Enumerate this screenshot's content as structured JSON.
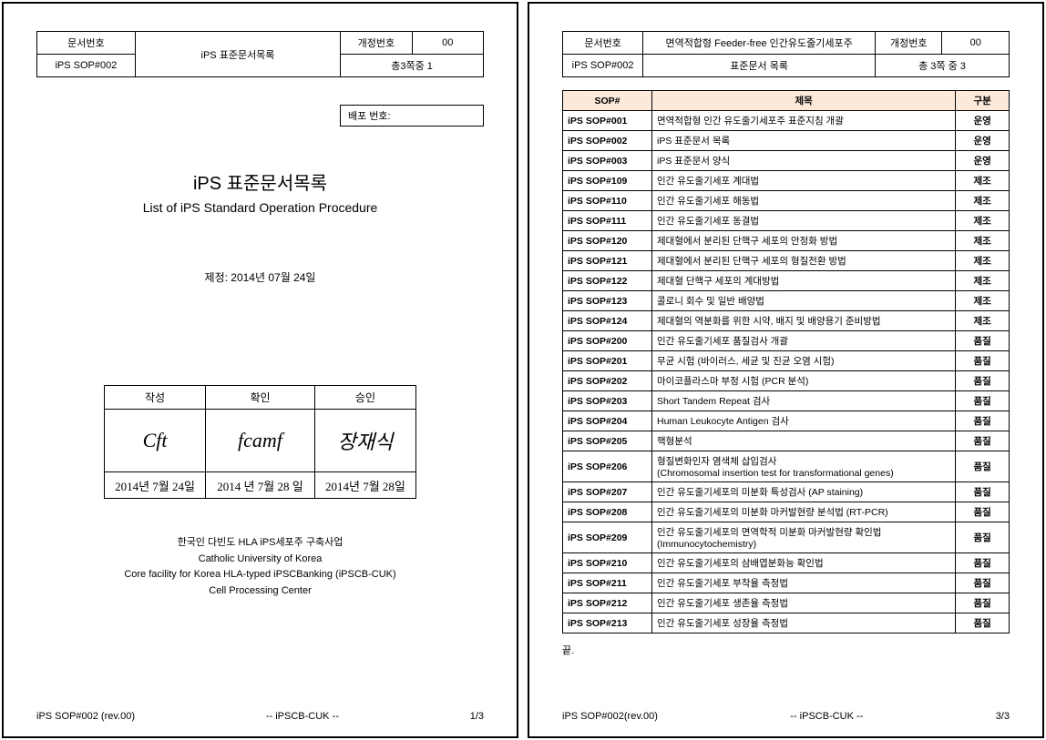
{
  "page1": {
    "header": {
      "docnum_label": "문서번호",
      "docnum": "iPS SOP#002",
      "title": "iPS 표준문서목록",
      "rev_label": "개정번호",
      "rev": "00",
      "pages": "총3쪽중 1"
    },
    "dist_label": "배포 번호:",
    "main_title_kr": "iPS 표준문서목록",
    "main_title_en": "List of iPS Standard Operation Procedure",
    "date_line": "제정: 2014년 07월   24일",
    "sig_headers": {
      "a": "작성",
      "b": "확인",
      "c": "승인"
    },
    "sigs": {
      "a": "Cft",
      "b": "fcamf",
      "c": "장재식"
    },
    "sig_dates": {
      "a": "2014년 7월 24일",
      "b": "2014 년 7월 28 일",
      "c": "2014년 7월 28일"
    },
    "org1": "한국인 다빈도 HLA iPS세포주 구축사업",
    "org2": "Catholic University of Korea",
    "org3": "Core facility for Korea HLA-typed iPSCBanking (iPSCB-CUK)",
    "org4": "Cell Processing Center",
    "footer": {
      "l": "iPS SOP#002 (rev.00)",
      "c": "-- iPSCB-CUK --",
      "r": "1/3"
    }
  },
  "page2": {
    "header": {
      "docnum_label": "문서번호",
      "docnum": "iPS SOP#002",
      "title_l1": "면역적합형 Feeder-free 인간유도줄기세포주",
      "title_l2": "표준문서 목록",
      "rev_label": "개정번호",
      "rev": "00",
      "pages": "총 3쪽 중 3"
    },
    "columns": {
      "sop": "SOP#",
      "title": "제목",
      "cat": "구분"
    },
    "rows": [
      {
        "sop": "iPS SOP#001",
        "title": "면역적합형 인간 유도줄기세포주 표준지침 개괄",
        "cat": "운영"
      },
      {
        "sop": "iPS SOP#002",
        "title": "iPS 표준문서 목록",
        "cat": "운영"
      },
      {
        "sop": "iPS SOP#003",
        "title": "iPS 표준문서 양식",
        "cat": "운영"
      },
      {
        "sop": "iPS SOP#109",
        "title": "인간 유도줄기세포 계대법",
        "cat": "제조"
      },
      {
        "sop": "iPS SOP#110",
        "title": "인간 유도줄기세포 해동법",
        "cat": "제조"
      },
      {
        "sop": "iPS SOP#111",
        "title": "인간 유도줄기세포 동결법",
        "cat": "제조"
      },
      {
        "sop": "iPS SOP#120",
        "title": "제대혈에서 분리된 단핵구 세포의 안정화 방법",
        "cat": "제조"
      },
      {
        "sop": "iPS SOP#121",
        "title": "제대혈에서 분리된 단핵구 세포의 형질전환 방법",
        "cat": "제조"
      },
      {
        "sop": "iPS SOP#122",
        "title": "제대혈 단핵구 세포의 계대방법",
        "cat": "제조"
      },
      {
        "sop": "iPS SOP#123",
        "title": "콜로니 회수 및 일반 배양법",
        "cat": "제조"
      },
      {
        "sop": "iPS SOP#124",
        "title": "제대혈의 역분화를 위한 시약, 배지 및 배양용기 준비방법",
        "cat": "제조"
      },
      {
        "sop": "iPS SOP#200",
        "title": "인간 유도줄기세포 품질검사 개괄",
        "cat": "품질"
      },
      {
        "sop": "iPS SOP#201",
        "title": "무균 시험 (바이러스, 세균 및 진균 오염 시험)",
        "cat": "품질"
      },
      {
        "sop": "iPS SOP#202",
        "title": "마이코플라스마 부정 시험 (PCR 분석)",
        "cat": "품질"
      },
      {
        "sop": "iPS SOP#203",
        "title": "Short Tandem Repeat 검사",
        "cat": "품질"
      },
      {
        "sop": "iPS SOP#204",
        "title": "Human Leukocyte Antigen 검사",
        "cat": "품질"
      },
      {
        "sop": "iPS SOP#205",
        "title": "핵형분석",
        "cat": "품질"
      },
      {
        "sop": "iPS SOP#206",
        "title": "형질변화인자 염색체 삽입검사\n(Chromosomal insertion test for transformational genes)",
        "cat": "품질"
      },
      {
        "sop": "iPS SOP#207",
        "title": "인간 유도줄기세포의 미분화 특성검사 (AP staining)",
        "cat": "품질"
      },
      {
        "sop": "iPS SOP#208",
        "title": "인간 유도줄기세포의 미분화 마커발현량 분석법 (RT-PCR)",
        "cat": "품질"
      },
      {
        "sop": "iPS SOP#209",
        "title": "인간 유도줄기세포의 면역학적 미분화 마커발현량 확인법\n(Immunocytochemistry)",
        "cat": "품질"
      },
      {
        "sop": "iPS SOP#210",
        "title": "인간 유도줄기세포의 삼배엽분화능 확인법",
        "cat": "품질"
      },
      {
        "sop": "iPS SOP#211",
        "title": "인간 유도줄기세포 부착율 측정법",
        "cat": "품질"
      },
      {
        "sop": "iPS SOP#212",
        "title": "인간 유도줄기세포 생존율 측정법",
        "cat": "품질"
      },
      {
        "sop": "iPS SOP#213",
        "title": "인간 유도줄기세포 성장율 측정법",
        "cat": "품질"
      }
    ],
    "end": "끝.",
    "footer": {
      "l": "iPS SOP#002(rev.00)",
      "c": "-- iPSCB-CUK --",
      "r": "3/3"
    }
  }
}
